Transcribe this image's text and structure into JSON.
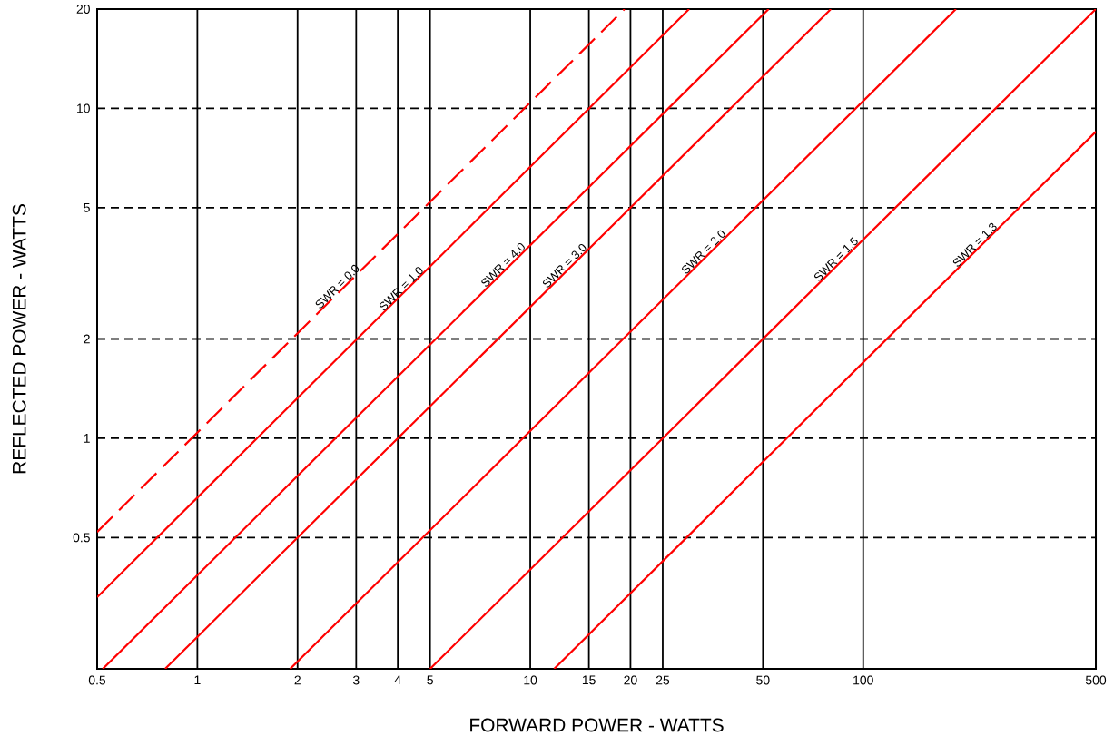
{
  "chart_data": {
    "type": "line",
    "xlabel": "FORWARD POWER - WATTS",
    "ylabel": "REFLECTED POWER - WATTS",
    "log": "xy",
    "grid": true,
    "xlim": [
      0.5,
      500
    ],
    "ylim": [
      0.2,
      20
    ],
    "xticks": [
      0.5,
      1,
      2,
      3,
      4,
      5,
      10,
      15,
      20,
      25,
      50,
      100,
      500
    ],
    "yticks": [
      0.5,
      1,
      2,
      5,
      10,
      20
    ],
    "series": [
      {
        "color": "#ff0000",
        "line_style": "dashed",
        "x": [
          0.5,
          19.2
        ],
        "values": [
          0.52,
          20
        ]
      },
      {
        "color": "#ff0000",
        "x": [
          0.5,
          30
        ],
        "values": [
          0.33,
          20
        ]
      },
      {
        "color": "#ff0000",
        "x": [
          0.52,
          52
        ],
        "values": [
          0.2,
          20
        ]
      },
      {
        "color": "#ff0000",
        "x": [
          0.8,
          80
        ],
        "values": [
          0.2,
          20
        ]
      },
      {
        "color": "#ff0000",
        "x": [
          1.9,
          190
        ],
        "values": [
          0.2,
          20
        ]
      },
      {
        "color": "#ff0000",
        "x": [
          5,
          500
        ],
        "values": [
          0.2,
          20
        ]
      },
      {
        "color": "#ff0000",
        "x": [
          11.8,
          500
        ],
        "values": [
          0.2,
          8.5
        ]
      }
    ],
    "annotations": [
      {
        "text": "SWR = 0.0",
        "x": 2.7,
        "y": 2.81
      },
      {
        "text": "SWR = 1.0",
        "x": 4.2,
        "y": 2.77
      },
      {
        "text": "SWR = 4.0",
        "x": 8.5,
        "y": 3.27
      },
      {
        "text": "SWR = 3.0",
        "x": 13,
        "y": 3.25
      },
      {
        "text": "SWR = 2.0",
        "x": 34,
        "y": 3.58
      },
      {
        "text": "SWR = 1.5",
        "x": 85,
        "y": 3.4
      },
      {
        "text": "SWR = 1.3",
        "x": 222,
        "y": 3.76
      }
    ]
  }
}
